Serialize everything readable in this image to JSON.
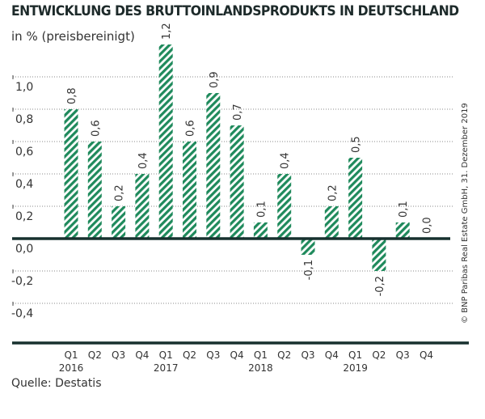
{
  "title": "ENTWICKLUNG DES BRUTTOINLANDSPRODUKTS IN DEUTSCHLAND",
  "subtitle": "in % (preisbereinigt)",
  "source": "Quelle: Destatis",
  "copyright": "© BNP Paribas Real Estate GmbH, 31. Dezember 2019",
  "colors": {
    "bar": "#1f8a5c",
    "axis": "#17302e"
  },
  "chart_data": {
    "type": "bar",
    "pattern": "diagonal-hatch",
    "categories": [
      "Q1 2016",
      "Q2 2016",
      "Q3 2016",
      "Q4 2016",
      "Q1 2017",
      "Q2 2017",
      "Q3 2017",
      "Q4 2017",
      "Q1 2018",
      "Q2 2018",
      "Q3 2018",
      "Q4 2018",
      "Q1 2019",
      "Q2 2019",
      "Q3 2019",
      "Q4 2019"
    ],
    "quarter_labels": [
      "Q1",
      "Q2",
      "Q3",
      "Q4",
      "Q1",
      "Q2",
      "Q3",
      "Q4",
      "Q1",
      "Q2",
      "Q3",
      "Q4",
      "Q1",
      "Q2",
      "Q3",
      "Q4"
    ],
    "year_labels": [
      "2016",
      "2017",
      "2018",
      "2019"
    ],
    "values": [
      0.8,
      0.6,
      0.2,
      0.4,
      1.2,
      0.6,
      0.9,
      0.7,
      0.1,
      0.4,
      -0.1,
      0.2,
      0.5,
      -0.2,
      0.1,
      0.0
    ],
    "data_labels": [
      "0,8",
      "0,6",
      "0,2",
      "0,4",
      "1,2",
      "0,6",
      "0,9",
      "0,7",
      "0,1",
      "0,4",
      "-0,1",
      "0,2",
      "0,5",
      "-0,2",
      "0,1",
      "0,0"
    ],
    "yticks": [
      1.0,
      0.8,
      0.6,
      0.4,
      0.2,
      0.0,
      -0.2,
      -0.4
    ],
    "ytick_labels": [
      "1,0",
      "0,8",
      "0,6",
      "0,4",
      "0,2",
      "0,0",
      "-0,2",
      "-0,4"
    ],
    "ylim": [
      -0.6,
      1.2
    ],
    "grid": true
  }
}
